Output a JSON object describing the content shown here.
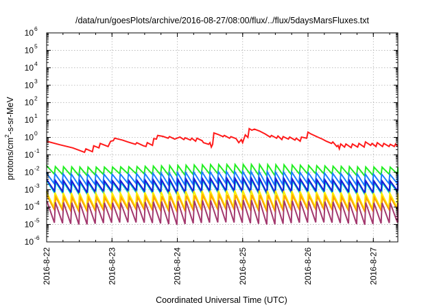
{
  "chart_data": {
    "type": "line",
    "title": "/data/run/goesPlots/archive/2016-08-27/08:00/flux/../flux/5daysMarsFluxes.txt",
    "xlabel": "Coordinated Universal Time (UTC)",
    "ylabel": "protons/cm2-s-sr-MeV",
    "ylabel_parts": {
      "pre": "protons/cm",
      "sup": "2",
      "post": "-s-sr-MeV"
    },
    "yscale": "log",
    "ylim_exponent": [
      -6,
      6
    ],
    "y_tick_labels": [
      {
        "base": "10",
        "exp": "-6"
      },
      {
        "base": "10",
        "exp": "-5"
      },
      {
        "base": "10",
        "exp": "-4"
      },
      {
        "base": "10",
        "exp": "-3"
      },
      {
        "base": "10",
        "exp": "-2"
      },
      {
        "base": "10",
        "exp": "-1"
      },
      {
        "base": "10",
        "exp": "0"
      },
      {
        "base": "10",
        "exp": "1"
      },
      {
        "base": "10",
        "exp": "2"
      },
      {
        "base": "10",
        "exp": "3"
      },
      {
        "base": "10",
        "exp": "4"
      },
      {
        "base": "10",
        "exp": "5"
      },
      {
        "base": "10",
        "exp": "6"
      }
    ],
    "x_ticks": [
      "2016-8-22",
      "2016-8-23",
      "2016-8-24",
      "2016-8-25",
      "2016-8-26",
      "2016-8-27"
    ],
    "xlim": [
      "2016-08-22 00:00",
      "2016-08-27 09:00"
    ],
    "grid": true,
    "series": [
      {
        "color": "#ff1a1a",
        "points": [
          [
            "2016-08-22 00:00",
            0.6
          ],
          [
            "2016-08-22 04:48",
            0.38
          ],
          [
            "2016-08-22 09:36",
            0.25
          ],
          [
            "2016-08-22 13:55",
            0.14
          ],
          [
            "2016-08-22 14:24",
            0.22
          ],
          [
            "2016-08-22 16:48",
            0.15
          ],
          [
            "2016-08-22 17:17",
            0.33
          ],
          [
            "2016-08-22 19:12",
            0.25
          ],
          [
            "2016-08-22 19:41",
            0.45
          ],
          [
            "2016-08-22 22:34",
            0.3
          ],
          [
            "2016-08-22 23:31",
            0.6
          ],
          [
            "2016-08-23 00:29",
            0.65
          ],
          [
            "2016-08-23 00:58",
            0.9
          ],
          [
            "2016-08-23 03:50",
            0.7
          ],
          [
            "2016-08-23 05:46",
            0.55
          ],
          [
            "2016-08-23 08:38",
            0.4
          ],
          [
            "2016-08-23 09:07",
            0.5
          ],
          [
            "2016-08-23 11:31",
            0.33
          ],
          [
            "2016-08-23 12:29",
            0.3
          ],
          [
            "2016-08-23 12:58",
            0.5
          ],
          [
            "2016-08-23 14:53",
            0.35
          ],
          [
            "2016-08-23 15:22",
            0.85
          ],
          [
            "2016-08-23 16:19",
            0.8
          ],
          [
            "2016-08-23 16:48",
            1.3
          ],
          [
            "2016-08-23 18:43",
            1.15
          ],
          [
            "2016-08-23 20:38",
            0.9
          ],
          [
            "2016-08-23 21:07",
            1.1
          ],
          [
            "2016-08-23 23:02",
            0.8
          ],
          [
            "2016-08-24 00:58",
            1.05
          ],
          [
            "2016-08-24 02:24",
            0.75
          ],
          [
            "2016-08-24 02:53",
            0.95
          ],
          [
            "2016-08-24 04:48",
            0.7
          ],
          [
            "2016-08-24 05:17",
            0.9
          ],
          [
            "2016-08-24 06:43",
            0.6
          ],
          [
            "2016-08-24 07:12",
            0.9
          ],
          [
            "2016-08-24 09:07",
            0.65
          ],
          [
            "2016-08-24 09:36",
            0.5
          ],
          [
            "2016-08-24 11:31",
            0.4
          ],
          [
            "2016-08-24 12:00",
            0.5
          ],
          [
            "2016-08-24 12:29",
            0.28
          ],
          [
            "2016-08-24 12:58",
            0.4
          ],
          [
            "2016-08-24 13:26",
            1.8
          ],
          [
            "2016-08-24 14:53",
            1.5
          ],
          [
            "2016-08-24 16:48",
            1.1
          ],
          [
            "2016-08-24 17:17",
            1.3
          ],
          [
            "2016-08-24 19:12",
            0.9
          ],
          [
            "2016-08-24 19:41",
            1.1
          ],
          [
            "2016-08-24 21:36",
            0.85
          ],
          [
            "2016-08-24 22:34",
            0.5
          ],
          [
            "2016-08-24 23:31",
            0.75
          ],
          [
            "2016-08-24 23:59",
            0.5
          ],
          [
            "2016-08-25 00:58",
            1.4
          ],
          [
            "2016-08-25 01:55",
            1.0
          ],
          [
            "2016-08-25 02:24",
            3.2
          ],
          [
            "2016-08-25 03:22",
            2.6
          ],
          [
            "2016-08-25 04:19",
            3.0
          ],
          [
            "2016-08-25 06:14",
            2.3
          ],
          [
            "2016-08-25 08:10",
            1.6
          ],
          [
            "2016-08-25 10:05",
            1.05
          ],
          [
            "2016-08-25 10:34",
            1.3
          ],
          [
            "2016-08-25 12:29",
            0.9
          ],
          [
            "2016-08-25 12:58",
            1.2
          ],
          [
            "2016-08-25 14:24",
            0.75
          ],
          [
            "2016-08-25 14:53",
            1.1
          ],
          [
            "2016-08-25 16:48",
            0.8
          ],
          [
            "2016-08-25 17:17",
            1.05
          ],
          [
            "2016-08-25 19:12",
            0.7
          ],
          [
            "2016-08-25 19:41",
            0.9
          ],
          [
            "2016-08-25 21:07",
            0.6
          ],
          [
            "2016-08-25 21:36",
            1.05
          ],
          [
            "2016-08-25 23:31",
            0.9
          ],
          [
            "2016-08-26 00:00",
            2.0
          ],
          [
            "2016-08-26 00:58",
            1.6
          ],
          [
            "2016-08-26 03:50",
            1.0
          ],
          [
            "2016-08-26 05:17",
            0.8
          ],
          [
            "2016-08-26 06:43",
            0.6
          ],
          [
            "2016-08-26 08:38",
            0.45
          ],
          [
            "2016-08-26 09:07",
            0.55
          ],
          [
            "2016-08-26 10:34",
            0.3
          ],
          [
            "2016-08-26 11:02",
            0.35
          ],
          [
            "2016-08-26 11:31",
            0.22
          ],
          [
            "2016-08-26 12:00",
            0.42
          ],
          [
            "2016-08-26 13:26",
            0.28
          ],
          [
            "2016-08-26 13:55",
            0.42
          ],
          [
            "2016-08-26 15:50",
            0.26
          ],
          [
            "2016-08-26 16:19",
            0.42
          ],
          [
            "2016-08-26 18:14",
            0.28
          ],
          [
            "2016-08-26 18:43",
            0.45
          ],
          [
            "2016-08-26 20:38",
            0.28
          ],
          [
            "2016-08-26 21:07",
            0.55
          ],
          [
            "2016-08-26 23:02",
            0.35
          ],
          [
            "2016-08-26 23:31",
            0.45
          ],
          [
            "2016-08-27 00:58",
            0.3
          ],
          [
            "2016-08-27 01:26",
            0.5
          ],
          [
            "2016-08-27 03:22",
            0.3
          ],
          [
            "2016-08-27 03:50",
            0.45
          ],
          [
            "2016-08-27 05:46",
            0.3
          ],
          [
            "2016-08-27 06:14",
            0.4
          ],
          [
            "2016-08-27 07:41",
            0.3
          ],
          [
            "2016-08-27 08:10",
            0.42
          ],
          [
            "2016-08-27 09:00",
            0.3
          ]
        ]
      },
      {
        "color": "#22ee22",
        "sawtooth": {
          "start": "2016-08-22 00:00",
          "end": "2016-08-27 09:00",
          "period_hours": 3.0,
          "top": 0.028,
          "bottom": 0.0075
        }
      },
      {
        "color": "#1a7fff",
        "sawtooth": {
          "start": "2016-08-22 00:00",
          "end": "2016-08-27 09:00",
          "period_hours": 3.0,
          "top": 0.011,
          "bottom": 0.0022
        }
      },
      {
        "color": "#00d4d0",
        "sawtooth": {
          "start": "2016-08-22 00:00",
          "end": "2016-08-27 09:00",
          "period_hours": 3.0,
          "top": 0.0035,
          "bottom": 0.0006
        }
      },
      {
        "color": "#1a1ad4",
        "sawtooth": {
          "start": "2016-08-22 00:00",
          "end": "2016-08-27 09:00",
          "period_hours": 3.0,
          "top": 0.0045,
          "bottom": 0.0008
        }
      },
      {
        "color": "#ffee00",
        "sawtooth": {
          "start": "2016-08-22 00:00",
          "end": "2016-08-27 09:00",
          "period_hours": 3.0,
          "top": 0.0009,
          "bottom": 9e-05
        }
      },
      {
        "color": "#ffa000",
        "sawtooth": {
          "start": "2016-08-22 00:00",
          "end": "2016-08-27 09:00",
          "period_hours": 3.0,
          "top": 0.0005,
          "bottom": 6e-05
        }
      },
      {
        "color": "#a3386e",
        "sawtooth": {
          "start": "2016-08-22 00:00",
          "end": "2016-08-27 09:00",
          "period_hours": 3.0,
          "top": 0.00025,
          "bottom": 1.2e-05
        }
      }
    ]
  }
}
